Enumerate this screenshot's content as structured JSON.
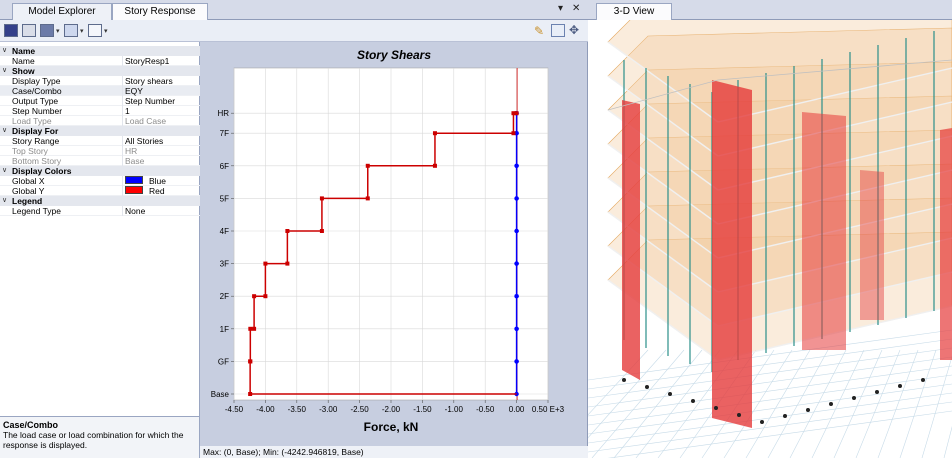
{
  "tabs": {
    "model_explorer": "Model Explorer",
    "story_response": "Story Response",
    "dropdown": "▾",
    "close": "✕",
    "view3d": "3-D View"
  },
  "properties": {
    "cat_name": "Name",
    "name_key": "Name",
    "name_val": "StoryResp1",
    "cat_show": "Show",
    "display_type_key": "Display Type",
    "display_type_val": "Story shears",
    "case_combo_key": "Case/Combo",
    "case_combo_val": "EQY",
    "output_type_key": "Output Type",
    "output_type_val": "Step Number",
    "step_number_key": "Step Number",
    "step_number_val": "1",
    "load_type_key": "Load Type",
    "load_type_val": "Load Case",
    "cat_display_for": "Display For",
    "story_range_key": "Story Range",
    "story_range_val": "All Stories",
    "top_story_key": "Top Story",
    "top_story_val": "HR",
    "bottom_story_key": "Bottom Story",
    "bottom_story_val": "Base",
    "cat_display_colors": "Display Colors",
    "global_x_key": "Global X",
    "global_x_val": "Blue",
    "global_x_color": "#0000ff",
    "global_y_key": "Global Y",
    "global_y_val": "Red",
    "global_y_color": "#ff0000",
    "cat_legend": "Legend",
    "legend_type_key": "Legend Type",
    "legend_type_val": "None"
  },
  "description": {
    "title": "Case/Combo",
    "text": "The load case or load combination for which the response is displayed."
  },
  "status_text": "Max: (0, Base);  Min: (-4242.946819, Base)",
  "chart_data": {
    "type": "line",
    "title": "Story Shears",
    "xlabel": "Force, kN",
    "ylabel": "",
    "xlim": [
      -4.5,
      0.5
    ],
    "x_ticks": [
      "-4.50",
      "-4.00",
      "-3.50",
      "-3.00",
      "-2.50",
      "-2.00",
      "-1.50",
      "-1.00",
      "-0.50",
      "0.00",
      "0.50 E+3"
    ],
    "stories": [
      "Base",
      "GF",
      "1F",
      "2F",
      "3F",
      "4F",
      "5F",
      "6F",
      "7F",
      "HR"
    ],
    "series": [
      {
        "name": "Global X",
        "color": "#0000ff",
        "steps": [
          0,
          0,
          0,
          0,
          0,
          0,
          0,
          0,
          0,
          0
        ]
      },
      {
        "name": "Global Y",
        "color": "#cc0000",
        "steps": [
          -4.243,
          -4.24,
          -4.18,
          -4.0,
          -3.65,
          -3.1,
          -2.37,
          -1.3,
          -0.05,
          0
        ]
      }
    ],
    "grid": true,
    "legend": "none"
  }
}
